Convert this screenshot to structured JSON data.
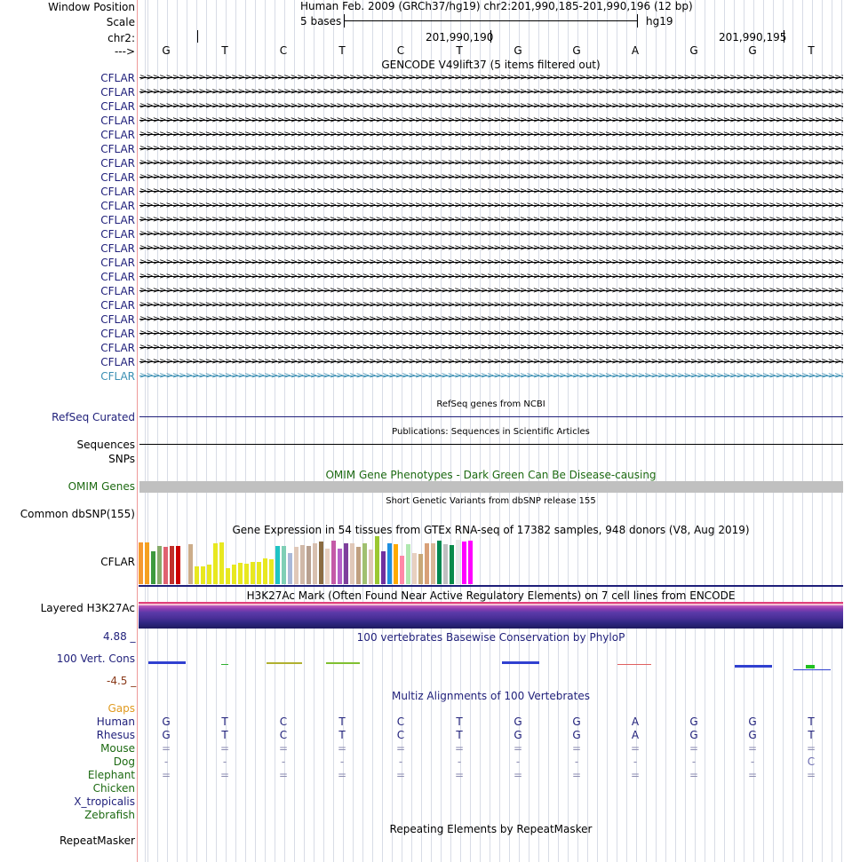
{
  "header": {
    "window_position_label": "Window Position",
    "window_position_text": "Human Feb. 2009 (GRCh37/hg19)   chr2:201,990,185-201,990,196 (12 bp)",
    "scale_label": "Scale",
    "scale_text": "5 bases",
    "scale_assembly": "hg19",
    "chrom_label": "chr2:",
    "coord1": "201,990,190",
    "coord2": "201,990,195",
    "strand_label": "--->"
  },
  "sequence": [
    "G",
    "T",
    "C",
    "T",
    "C",
    "T",
    "G",
    "G",
    "A",
    "G",
    "G",
    "T"
  ],
  "gencode": {
    "title": "GENCODE V49lift37 (5 items filtered out)",
    "items": [
      "CFLAR",
      "CFLAR",
      "CFLAR",
      "CFLAR",
      "CFLAR",
      "CFLAR",
      "CFLAR",
      "CFLAR",
      "CFLAR",
      "CFLAR",
      "CFLAR",
      "CFLAR",
      "CFLAR",
      "CFLAR",
      "CFLAR",
      "CFLAR",
      "CFLAR",
      "CFLAR",
      "CFLAR",
      "CFLAR",
      "CFLAR",
      "CFLAR"
    ]
  },
  "refseq": {
    "title": "RefSeq genes from NCBI",
    "label": "RefSeq Curated"
  },
  "publications": {
    "title": "Publications: Sequences in Scientific Articles",
    "label": "Sequences"
  },
  "snps": {
    "label": "SNPs"
  },
  "omim": {
    "title": "OMIM Gene Phenotypes - Dark Green Can Be Disease-causing",
    "label": "OMIM Genes"
  },
  "dbsnp": {
    "title": "Short Genetic Variants from dbSNP release 155",
    "label": "Common dbSNP(155)"
  },
  "gtex": {
    "title": "Gene Expression in 54 tissues from GTEx RNA-seq of 17382 samples, 948 donors (V8, Aug 2019)",
    "label": "CFLAR",
    "values": [
      47,
      47,
      37,
      43,
      42,
      43,
      43,
      0,
      45,
      20,
      20,
      22,
      46,
      47,
      18,
      22,
      24,
      23,
      25,
      25,
      29,
      28,
      43,
      43,
      35,
      42,
      44,
      43,
      46,
      48,
      40,
      49,
      40,
      46,
      46,
      42,
      46,
      39,
      54,
      37,
      46,
      45,
      32,
      45,
      35,
      34,
      46,
      46,
      49,
      45,
      44,
      50,
      48,
      49
    ],
    "colors": [
      "#f59a30",
      "#f5a020",
      "#3e9a3e",
      "#86ab6a",
      "#e06070",
      "#c0302a",
      "#cc0000",
      "#ffffff",
      "#ccad8a",
      "#e8e820",
      "#e8e820",
      "#e8e820",
      "#e8e820",
      "#e8e820",
      "#e8e820",
      "#e8e820",
      "#e8e820",
      "#e8e820",
      "#e8e820",
      "#e8e820",
      "#e8e820",
      "#e8e820",
      "#1fc4c4",
      "#7fcfb6",
      "#a9b8d8",
      "#e0c8b8",
      "#d0b8a8",
      "#b8a090",
      "#d8c0b0",
      "#8b6c42",
      "#e8d0c0",
      "#c45aa8",
      "#b560c8",
      "#7e3f9c",
      "#e0c8b8",
      "#c0a080",
      "#a0c070",
      "#e0c8b8",
      "#9bc832",
      "#7030a0",
      "#1f8fe0",
      "#ffaa00",
      "#ff88a8",
      "#b0e8b0",
      "#e8d0c0",
      "#c8a878",
      "#d8a078",
      "#d8b898",
      "#008850",
      "#c0c0c0",
      "#0a8a4a",
      "#e8e8e8",
      "#ff00ff",
      "#ff00ff"
    ]
  },
  "h3k27ac": {
    "title": "H3K27Ac Mark (Often Found Near Active Regulatory Elements) on 7 cell lines from ENCODE",
    "label": "Layered H3K27Ac"
  },
  "phylop": {
    "title": "100 vertebrates Basewise Conservation by PhyloP",
    "label": "100 Vert. Cons",
    "max": "4.88 _",
    "min": "-4.5 _"
  },
  "multiz": {
    "title": "Multiz Alignments of 100 Vertebrates",
    "species": [
      {
        "name": "Gaps",
        "row": []
      },
      {
        "name": "Human",
        "row": [
          "G",
          "T",
          "C",
          "T",
          "C",
          "T",
          "G",
          "G",
          "A",
          "G",
          "G",
          "T"
        ]
      },
      {
        "name": "Rhesus",
        "row": [
          "G",
          "T",
          "C",
          "T",
          "C",
          "T",
          "G",
          "G",
          "A",
          "G",
          "G",
          "T"
        ]
      },
      {
        "name": "Mouse",
        "row": [
          "=",
          "=",
          "=",
          "=",
          "=",
          "=",
          "=",
          "=",
          "=",
          "=",
          "=",
          "="
        ]
      },
      {
        "name": "Dog",
        "row": [
          "-",
          "-",
          "-",
          "-",
          "-",
          "-",
          "-",
          "-",
          "-",
          "-",
          "-",
          "C"
        ]
      },
      {
        "name": "Elephant",
        "row": [
          "=",
          "=",
          "=",
          "=",
          "=",
          "=",
          "=",
          "=",
          "=",
          "=",
          "=",
          "="
        ]
      },
      {
        "name": "Chicken",
        "row": []
      },
      {
        "name": "X_tropicalis",
        "row": []
      },
      {
        "name": "Zebrafish",
        "row": []
      }
    ]
  },
  "repeatmasker": {
    "title": "Repeating Elements by RepeatMasker",
    "label": "RepeatMasker"
  },
  "colors": {
    "navy": "#1f1f7a",
    "green": "#1d6a12",
    "orange": "#e09a20",
    "omim_bar": "#c0c0c0"
  }
}
